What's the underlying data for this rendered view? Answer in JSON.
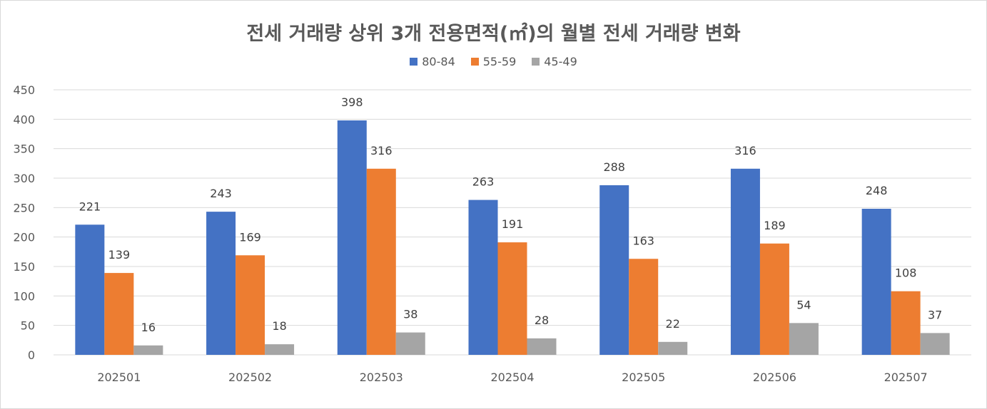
{
  "chart_data": {
    "type": "bar",
    "title": "전세 거래량 상위 3개 전용면적(㎡)의 월별 전세 거래량 변화",
    "xlabel": "",
    "ylabel": "",
    "categories": [
      "202501",
      "202502",
      "202503",
      "202504",
      "202505",
      "202506",
      "202507"
    ],
    "series": [
      {
        "name": "80-84",
        "color": "#4472c4",
        "values": [
          221,
          243,
          398,
          263,
          288,
          316,
          248
        ]
      },
      {
        "name": "55-59",
        "color": "#ed7d31",
        "values": [
          139,
          169,
          316,
          191,
          163,
          189,
          108
        ]
      },
      {
        "name": "45-49",
        "color": "#a5a5a5",
        "values": [
          16,
          18,
          38,
          28,
          22,
          54,
          37
        ]
      }
    ],
    "ylim": [
      0,
      450
    ],
    "yticks": [
      0,
      50,
      100,
      150,
      200,
      250,
      300,
      350,
      400,
      450
    ],
    "grid": true,
    "legend_position": "top",
    "data_labels": true
  }
}
